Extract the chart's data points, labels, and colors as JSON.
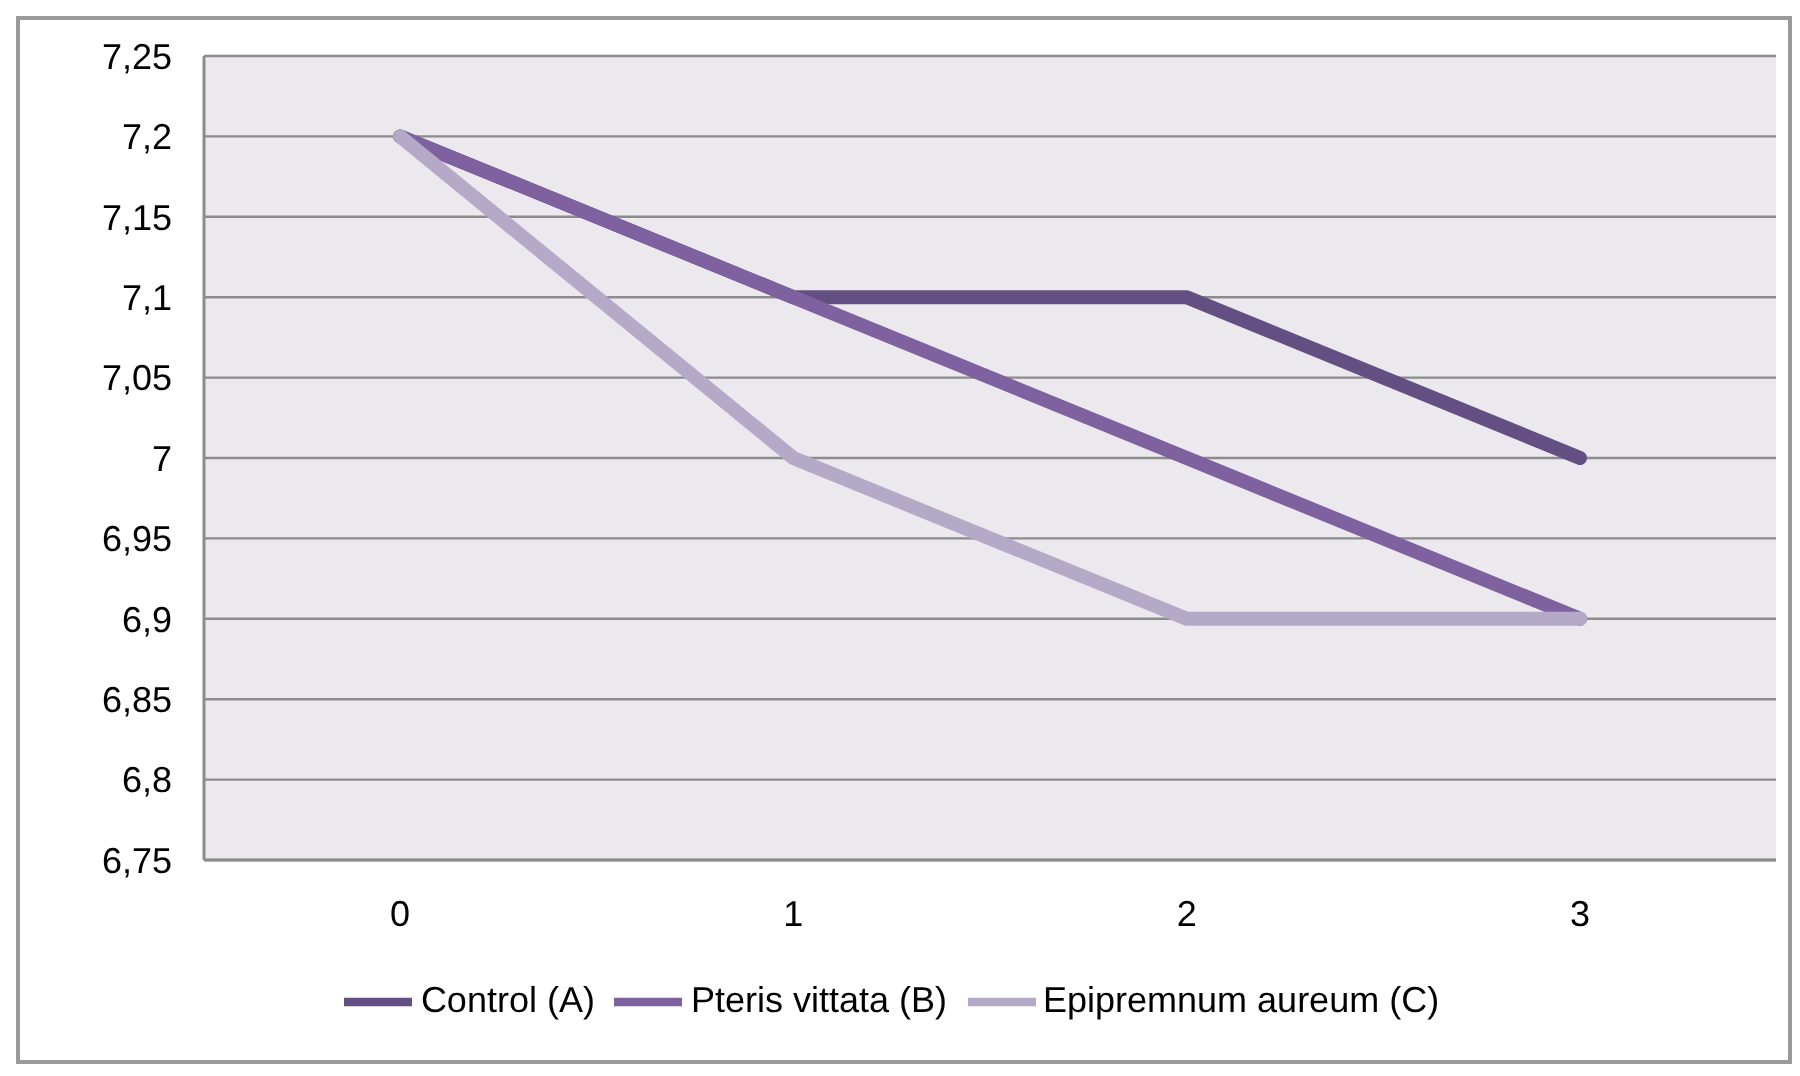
{
  "chart_data": {
    "type": "line",
    "categories": [
      "0",
      "1",
      "2",
      "3"
    ],
    "series": [
      {
        "name": "Control (A)",
        "color": "#644f82",
        "values": [
          7.2,
          7.1,
          7.1,
          7.0
        ]
      },
      {
        "name": "Pteris vittata (B)",
        "color": "#7f61a0",
        "values": [
          7.2,
          7.1,
          7.0,
          6.9
        ]
      },
      {
        "name": "Epipremnum aureum (C)",
        "color": "#b5a9c8",
        "values": [
          7.2,
          7.0,
          6.9,
          6.9
        ]
      }
    ],
    "ylim": [
      6.75,
      7.25
    ],
    "yticks": [
      {
        "value": 6.75,
        "label": "6,75"
      },
      {
        "value": 6.8,
        "label": "6,8"
      },
      {
        "value": 6.85,
        "label": "6,85"
      },
      {
        "value": 6.9,
        "label": "6,9"
      },
      {
        "value": 6.95,
        "label": "6,95"
      },
      {
        "value": 7,
        "label": "7"
      },
      {
        "value": 7.05,
        "label": "7,05"
      },
      {
        "value": 7.1,
        "label": "7,1"
      },
      {
        "value": 7.15,
        "label": "7,15"
      },
      {
        "value": 7.2,
        "label": "7,2"
      },
      {
        "value": 7.25,
        "label": "7,25"
      }
    ],
    "grid": "y",
    "legend": "bottom",
    "marker": "none",
    "line_style": "solid"
  }
}
